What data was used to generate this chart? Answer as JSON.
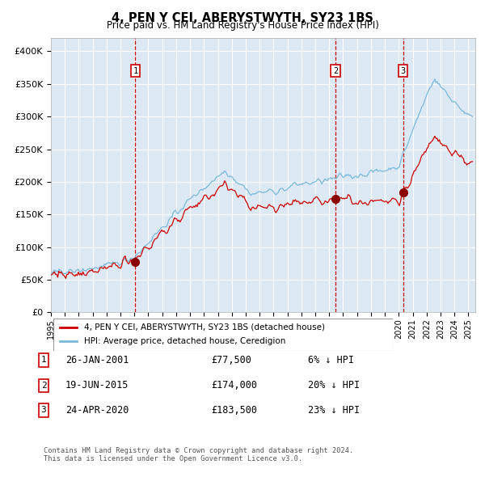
{
  "title": "4, PEN Y CEI, ABERYSTWYTH, SY23 1BS",
  "subtitle": "Price paid vs. HM Land Registry's House Price Index (HPI)",
  "legend_property": "4, PEN Y CEI, ABERYSTWYTH, SY23 1BS (detached house)",
  "legend_hpi": "HPI: Average price, detached house, Ceredigion",
  "transactions": [
    {
      "label": "1",
      "date": "26-JAN-2001",
      "price": 77500,
      "pct": "6%",
      "x_year": 2001.07
    },
    {
      "label": "2",
      "date": "19-JUN-2015",
      "price": 174000,
      "pct": "20%",
      "x_year": 2015.46
    },
    {
      "label": "3",
      "date": "24-APR-2020",
      "price": 183500,
      "pct": "23%",
      "x_year": 2020.31
    }
  ],
  "footer1": "Contains HM Land Registry data © Crown copyright and database right 2024.",
  "footer2": "This data is licensed under the Open Government Licence v3.0.",
  "xlim": [
    1995.0,
    2025.5
  ],
  "ylim": [
    0,
    420000
  ],
  "yticks": [
    0,
    50000,
    100000,
    150000,
    200000,
    250000,
    300000,
    350000,
    400000
  ],
  "ytick_labels": [
    "£0",
    "£50K",
    "£100K",
    "£150K",
    "£200K",
    "£250K",
    "£300K",
    "£350K",
    "£400K"
  ],
  "xticks": [
    1995,
    1996,
    1997,
    1998,
    1999,
    2000,
    2001,
    2002,
    2003,
    2004,
    2005,
    2006,
    2007,
    2008,
    2009,
    2010,
    2011,
    2012,
    2013,
    2014,
    2015,
    2016,
    2017,
    2018,
    2019,
    2020,
    2021,
    2022,
    2023,
    2024,
    2025
  ],
  "hpi_color": "#7ab8d9",
  "property_color": "#cc0000",
  "background_color": "#dce9f5",
  "grid_color": "#ffffff",
  "transaction_marker_color": "#8b0000",
  "vline_color": "#cc0000",
  "label_box_color": "#cc0000"
}
